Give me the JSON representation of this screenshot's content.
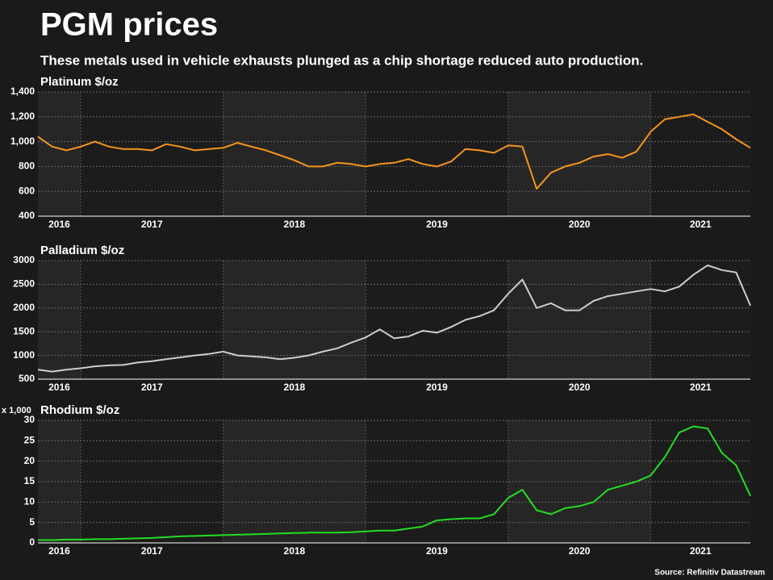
{
  "title": "PGM prices",
  "subtitle": "These metals used in vehicle exhausts plunged as a chip shortage reduced auto production.",
  "source": "Source: Refinitiv Datastream",
  "chart_data": [
    {
      "type": "line",
      "title": "Platinum $/oz",
      "color": "#f7941d",
      "grid": true,
      "x": [
        2016.7,
        2016.8,
        2016.9,
        2017.0,
        2017.1,
        2017.2,
        2017.3,
        2017.4,
        2017.5,
        2017.6,
        2017.7,
        2017.8,
        2017.9,
        2018.0,
        2018.1,
        2018.2,
        2018.3,
        2018.4,
        2018.5,
        2018.6,
        2018.7,
        2018.8,
        2018.9,
        2019.0,
        2019.1,
        2019.2,
        2019.3,
        2019.4,
        2019.5,
        2019.6,
        2019.7,
        2019.8,
        2019.9,
        2020.0,
        2020.1,
        2020.2,
        2020.3,
        2020.4,
        2020.5,
        2020.6,
        2020.7,
        2020.8,
        2020.9,
        2021.0,
        2021.1,
        2021.2,
        2021.3,
        2021.4,
        2021.5,
        2021.6,
        2021.7
      ],
      "values": [
        1040,
        960,
        930,
        960,
        1000,
        960,
        940,
        940,
        930,
        980,
        960,
        930,
        940,
        950,
        990,
        960,
        930,
        890,
        850,
        800,
        800,
        830,
        820,
        800,
        820,
        830,
        860,
        820,
        800,
        840,
        940,
        930,
        910,
        970,
        960,
        620,
        750,
        800,
        830,
        880,
        900,
        870,
        920,
        1080,
        1180,
        1200,
        1220,
        1160,
        1100,
        1020,
        950
      ],
      "xlim": [
        2016.7,
        2021.7
      ],
      "xticks": [
        2016,
        2017,
        2018,
        2019,
        2020,
        2021
      ],
      "ylim": [
        400,
        1400
      ],
      "yticks": [
        400,
        600,
        800,
        {
          "value": 1000,
          "label": "1,000"
        },
        {
          "value": 1200,
          "label": "1,200"
        },
        {
          "value": 1400,
          "label": "1,400"
        }
      ]
    },
    {
      "type": "line",
      "title": "Palladium $/oz",
      "color": "#cccccc",
      "grid": true,
      "x": [
        2016.7,
        2016.8,
        2016.9,
        2017.0,
        2017.1,
        2017.2,
        2017.3,
        2017.4,
        2017.5,
        2017.6,
        2017.7,
        2017.8,
        2017.9,
        2018.0,
        2018.1,
        2018.2,
        2018.3,
        2018.4,
        2018.5,
        2018.6,
        2018.7,
        2018.8,
        2018.9,
        2019.0,
        2019.1,
        2019.2,
        2019.3,
        2019.4,
        2019.5,
        2019.6,
        2019.7,
        2019.8,
        2019.9,
        2020.0,
        2020.1,
        2020.2,
        2020.3,
        2020.4,
        2020.5,
        2020.6,
        2020.7,
        2020.8,
        2020.9,
        2021.0,
        2021.1,
        2021.2,
        2021.3,
        2021.4,
        2021.5,
        2021.6,
        2021.7
      ],
      "values": [
        700,
        660,
        700,
        730,
        770,
        790,
        800,
        850,
        880,
        920,
        960,
        1000,
        1030,
        1080,
        1000,
        980,
        960,
        920,
        950,
        1000,
        1080,
        1150,
        1270,
        1380,
        1550,
        1360,
        1400,
        1520,
        1480,
        1600,
        1750,
        1830,
        1950,
        2300,
        2600,
        2000,
        2100,
        1950,
        1950,
        2150,
        2250,
        2300,
        2350,
        2400,
        2350,
        2450,
        2700,
        2900,
        2800,
        2750,
        2050
      ],
      "xlim": [
        2016.7,
        2021.7
      ],
      "xticks": [
        2016,
        2017,
        2018,
        2019,
        2020,
        2021
      ],
      "ylim": [
        500,
        3000
      ],
      "yticks": [
        500,
        1000,
        1500,
        2000,
        2500,
        3000
      ]
    },
    {
      "type": "line",
      "title": "Rhodium $/oz",
      "y_unit": "x 1,000",
      "color": "#22dd22",
      "grid": true,
      "x": [
        2016.7,
        2016.8,
        2016.9,
        2017.0,
        2017.1,
        2017.2,
        2017.3,
        2017.4,
        2017.5,
        2017.6,
        2017.7,
        2017.8,
        2017.9,
        2018.0,
        2018.1,
        2018.2,
        2018.3,
        2018.4,
        2018.5,
        2018.6,
        2018.7,
        2018.8,
        2018.9,
        2019.0,
        2019.1,
        2019.2,
        2019.3,
        2019.4,
        2019.5,
        2019.6,
        2019.7,
        2019.8,
        2019.9,
        2020.0,
        2020.1,
        2020.2,
        2020.3,
        2020.4,
        2020.5,
        2020.6,
        2020.7,
        2020.8,
        2020.9,
        2021.0,
        2021.1,
        2021.2,
        2021.3,
        2021.4,
        2021.5,
        2021.6,
        2021.7
      ],
      "values": [
        0.7,
        0.7,
        0.8,
        0.8,
        0.9,
        0.9,
        1.0,
        1.1,
        1.2,
        1.4,
        1.6,
        1.7,
        1.8,
        1.9,
        2.0,
        2.1,
        2.2,
        2.3,
        2.4,
        2.5,
        2.5,
        2.5,
        2.6,
        2.8,
        3.0,
        3.0,
        3.5,
        4.0,
        5.5,
        5.8,
        6.0,
        6.0,
        7.0,
        11.0,
        13.0,
        8.0,
        7.0,
        8.5,
        9.0,
        10.0,
        13.0,
        14.0,
        15.0,
        16.5,
        21.0,
        27.0,
        28.5,
        28.0,
        22.0,
        19.0,
        11.5
      ],
      "xlim": [
        2016.7,
        2021.7
      ],
      "xticks": [
        2016,
        2017,
        2018,
        2019,
        2020,
        2021
      ],
      "ylim": [
        0,
        30
      ],
      "yticks": [
        0,
        5,
        10,
        15,
        20,
        25,
        30
      ]
    }
  ]
}
